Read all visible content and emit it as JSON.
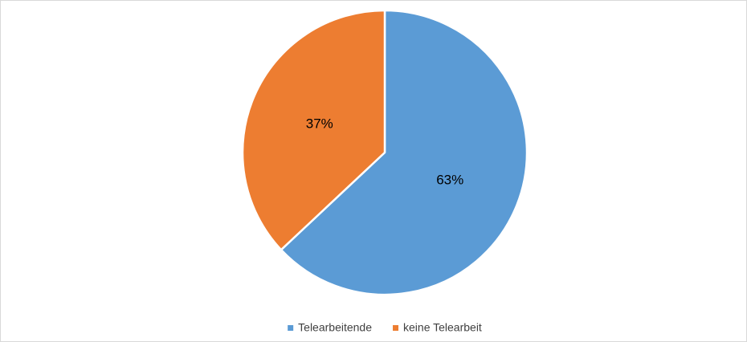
{
  "chart_data": {
    "type": "pie",
    "categories": [
      "Telearbeitende",
      "keine Telearbeit"
    ],
    "values": [
      63,
      37
    ],
    "value_labels": [
      "63%",
      "37%"
    ],
    "colors": [
      "#5b9bd5",
      "#ed7d31"
    ],
    "legend": "bottom"
  }
}
